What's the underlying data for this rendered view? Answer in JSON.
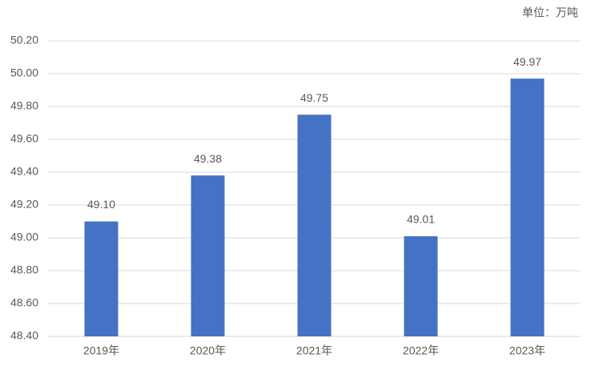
{
  "chart_data": {
    "type": "bar",
    "unit_label": "单位：万吨",
    "categories": [
      "2019年",
      "2020年",
      "2021年",
      "2022年",
      "2023年"
    ],
    "values": [
      49.1,
      49.38,
      49.75,
      49.01,
      49.97
    ],
    "value_labels": [
      "49.10",
      "49.38",
      "49.75",
      "49.01",
      "49.97"
    ],
    "color": "#4472c4",
    "ylim": [
      48.4,
      50.2
    ],
    "yticks": [
      {
        "value": 48.4,
        "label": "48.40"
      },
      {
        "value": 48.6,
        "label": "48.60"
      },
      {
        "value": 48.8,
        "label": "48.80"
      },
      {
        "value": 49.0,
        "label": "49.00"
      },
      {
        "value": 49.2,
        "label": "49.20"
      },
      {
        "value": 49.4,
        "label": "49.40"
      },
      {
        "value": 49.6,
        "label": "49.60"
      },
      {
        "value": 49.8,
        "label": "49.80"
      },
      {
        "value": 50.0,
        "label": "50.00"
      },
      {
        "value": 50.2,
        "label": "50.20"
      }
    ],
    "grid": true
  }
}
